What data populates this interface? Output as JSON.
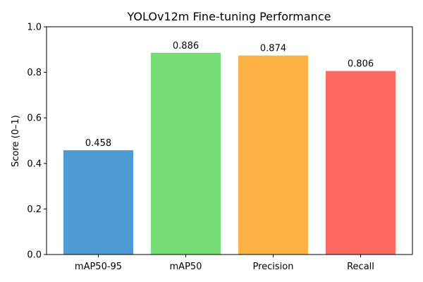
{
  "chart_data": {
    "type": "bar",
    "title": "YOLOv12m Fine-tuning Performance",
    "xlabel": "",
    "ylabel": "Score (0–1)",
    "categories": [
      "mAP50-95",
      "mAP50",
      "Precision",
      "Recall"
    ],
    "values": [
      0.458,
      0.886,
      0.874,
      0.806
    ],
    "value_labels": [
      "0.458",
      "0.886",
      "0.874",
      "0.806"
    ],
    "colors": [
      "#4C9BD4",
      "#77DD77",
      "#FFB347",
      "#FF6961"
    ],
    "ylim": [
      0,
      1.0
    ],
    "yticks": [
      0.0,
      0.2,
      0.4,
      0.6,
      0.8,
      1.0
    ],
    "ytick_labels": [
      "0.0",
      "0.2",
      "0.4",
      "0.6",
      "0.8",
      "1.0"
    ],
    "grid": false,
    "legend": "none"
  }
}
